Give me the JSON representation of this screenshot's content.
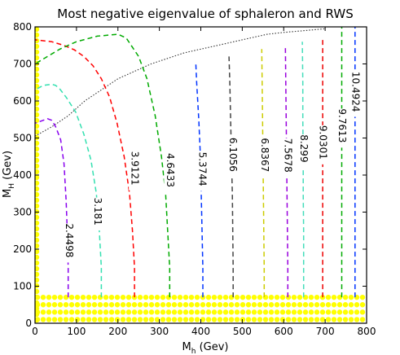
{
  "chart_data": {
    "type": "contour",
    "title": "Most negative eigenvalue of sphaleron and RWS",
    "xlabel": {
      "main": "M",
      "sub": "h",
      "rest": " (Gev)"
    },
    "ylabel": {
      "main": "M",
      "sub": "H",
      "rest": " (Gev)"
    },
    "xlim": [
      0,
      800
    ],
    "ylim": [
      0,
      800
    ],
    "xticks": [
      0,
      100,
      200,
      300,
      400,
      500,
      600,
      700,
      800
    ],
    "yticks": [
      0,
      100,
      200,
      300,
      400,
      500,
      600,
      700,
      800
    ],
    "grid": false,
    "contours": [
      {
        "label": "2.4498",
        "color": "#8800ee",
        "points": [
          [
            80,
            70
          ],
          [
            80,
            150
          ],
          [
            78,
            240
          ],
          [
            75,
            330
          ],
          [
            70,
            430
          ],
          [
            62,
            495
          ],
          [
            50,
            530
          ],
          [
            40,
            548
          ],
          [
            30,
            552
          ],
          [
            20,
            548
          ],
          [
            0,
            540
          ]
        ],
        "label_at": [
          82,
          265
        ]
      },
      {
        "label": "3.181",
        "color": "#33e0b0",
        "points": [
          [
            160,
            70
          ],
          [
            160,
            150
          ],
          [
            155,
            250
          ],
          [
            148,
            350
          ],
          [
            135,
            440
          ],
          [
            118,
            510
          ],
          [
            98,
            570
          ],
          [
            75,
            610
          ],
          [
            60,
            632
          ],
          [
            50,
            642
          ],
          [
            40,
            645
          ],
          [
            20,
            642
          ],
          [
            0,
            630
          ]
        ],
        "label_at": [
          150,
          335
        ]
      },
      {
        "label": "3.9121",
        "color": "#ff0000",
        "points": [
          [
            240,
            70
          ],
          [
            240,
            150
          ],
          [
            235,
            250
          ],
          [
            228,
            350
          ],
          [
            215,
            450
          ],
          [
            198,
            540
          ],
          [
            180,
            610
          ],
          [
            160,
            660
          ],
          [
            140,
            695
          ],
          [
            118,
            720
          ],
          [
            95,
            738
          ],
          [
            70,
            750
          ],
          [
            40,
            760
          ],
          [
            0,
            765
          ]
        ],
        "label_at": [
          240,
          460
        ]
      },
      {
        "label": "4.6433",
        "color": "#00aa00",
        "points": [
          [
            325,
            70
          ],
          [
            325,
            150
          ],
          [
            320,
            250
          ],
          [
            315,
            350
          ],
          [
            305,
            450
          ],
          [
            290,
            560
          ],
          [
            270,
            660
          ],
          [
            250,
            720
          ],
          [
            220,
            770
          ],
          [
            200,
            780
          ],
          [
            150,
            775
          ],
          [
            100,
            760
          ],
          [
            60,
            740
          ],
          [
            30,
            720
          ],
          [
            0,
            700
          ]
        ],
        "label_at": [
          325,
          455
        ]
      },
      {
        "label": "5.3744",
        "color": "#0033ff",
        "points": [
          [
            405,
            70
          ],
          [
            405,
            150
          ],
          [
            403,
            250
          ],
          [
            401,
            350
          ],
          [
            399,
            450
          ],
          [
            395,
            550
          ],
          [
            390,
            650
          ],
          [
            388,
            700
          ]
        ],
        "label_at": [
          403,
          458
        ]
      },
      {
        "label": "6.1056",
        "color": "#444444",
        "points": [
          [
            478,
            70
          ],
          [
            478,
            150
          ],
          [
            477,
            250
          ],
          [
            476,
            350
          ],
          [
            474,
            450
          ],
          [
            472,
            550
          ],
          [
            470,
            650
          ],
          [
            468,
            720
          ]
        ],
        "label_at": [
          477,
          497
        ]
      },
      {
        "label": "6.8367",
        "color": "#cccc00",
        "points": [
          [
            553,
            70
          ],
          [
            553,
            150
          ],
          [
            552,
            250
          ],
          [
            551,
            350
          ],
          [
            550,
            450
          ],
          [
            549,
            550
          ],
          [
            548,
            650
          ],
          [
            547,
            740
          ]
        ],
        "label_at": [
          553,
          496
        ]
      },
      {
        "label": "7.5678",
        "color": "#9900dd",
        "points": [
          [
            610,
            70
          ],
          [
            610,
            150
          ],
          [
            609,
            250
          ],
          [
            608,
            350
          ],
          [
            607,
            450
          ],
          [
            606,
            550
          ],
          [
            605,
            650
          ],
          [
            604,
            750
          ]
        ],
        "label_at": [
          609,
          495
        ]
      },
      {
        "label": "8.299",
        "color": "#44ddbb",
        "points": [
          [
            648,
            70
          ],
          [
            648,
            150
          ],
          [
            648,
            250
          ],
          [
            647,
            350
          ],
          [
            647,
            450
          ],
          [
            646,
            550
          ],
          [
            646,
            650
          ],
          [
            645,
            760
          ]
        ],
        "label_at": [
          648,
          505
        ]
      },
      {
        "label": "9.0301",
        "color": "#ee0000",
        "points": [
          [
            694,
            70
          ],
          [
            694,
            150
          ],
          [
            694,
            250
          ],
          [
            694,
            350
          ],
          [
            694,
            450
          ],
          [
            694,
            550
          ],
          [
            694,
            650
          ],
          [
            694,
            770
          ]
        ],
        "label_at": [
          694,
          530
        ]
      },
      {
        "label": "9.7613",
        "color": "#00aa00",
        "points": [
          [
            740,
            70
          ],
          [
            740,
            150
          ],
          [
            740,
            250
          ],
          [
            740,
            350
          ],
          [
            740,
            450
          ],
          [
            740,
            550
          ],
          [
            740,
            650
          ],
          [
            740,
            800
          ]
        ],
        "label_at": [
          740,
          575
        ]
      },
      {
        "label": "10.4924",
        "color": "#0033ff",
        "points": [
          [
            772,
            70
          ],
          [
            772,
            150
          ],
          [
            772,
            250
          ],
          [
            772,
            350
          ],
          [
            772,
            450
          ],
          [
            772,
            550
          ],
          [
            772,
            650
          ],
          [
            772,
            800
          ]
        ],
        "label_at": [
          772,
          675
        ]
      }
    ],
    "boundary": {
      "color": "#333333",
      "points": [
        [
          0,
          505
        ],
        [
          40,
          530
        ],
        [
          80,
          560
        ],
        [
          120,
          600
        ],
        [
          160,
          630
        ],
        [
          200,
          660
        ],
        [
          240,
          680
        ],
        [
          280,
          700
        ],
        [
          320,
          715
        ],
        [
          360,
          730
        ],
        [
          400,
          740
        ],
        [
          440,
          750
        ],
        [
          480,
          760
        ],
        [
          520,
          770
        ],
        [
          560,
          780
        ],
        [
          600,
          785
        ],
        [
          650,
          790
        ],
        [
          700,
          795
        ]
      ]
    },
    "marker_color": "#ffff00",
    "markers_bottom_y": [
      10,
      30,
      50,
      70
    ],
    "markers_left_x": [
      0
    ]
  }
}
